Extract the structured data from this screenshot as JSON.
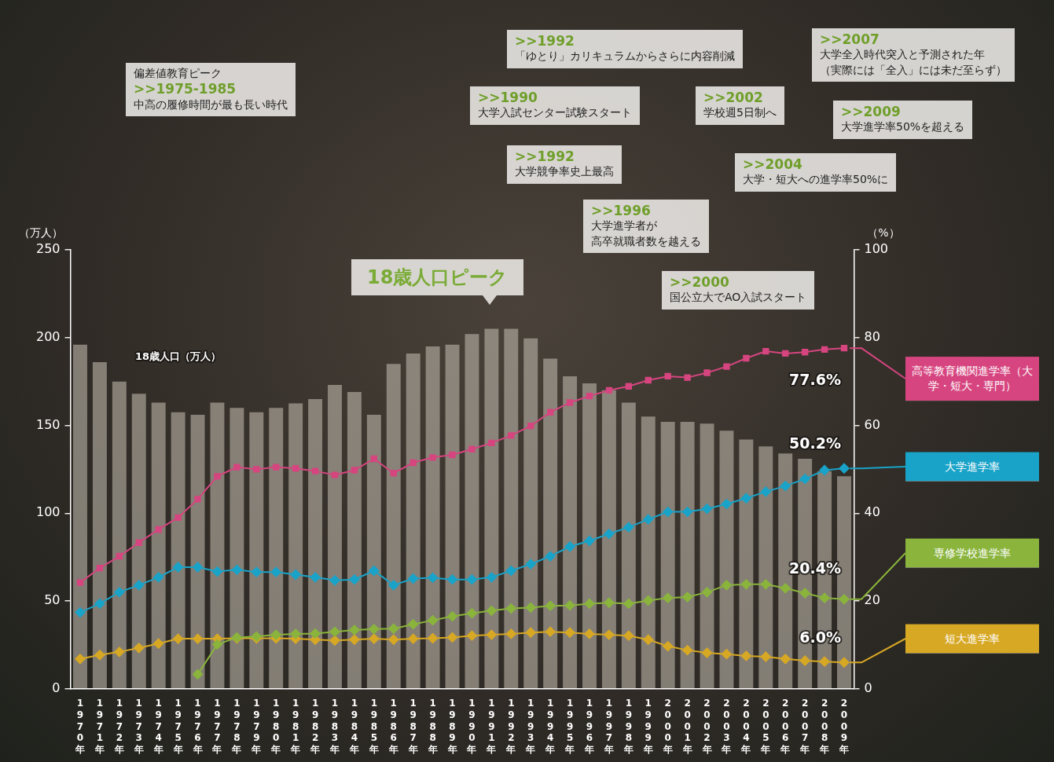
{
  "chart_data": {
    "type": "bar",
    "categories": [
      "1970年",
      "1971年",
      "1972年",
      "1973年",
      "1974年",
      "1975年",
      "1976年",
      "1977年",
      "1978年",
      "1979年",
      "1980年",
      "1981年",
      "1982年",
      "1983年",
      "1984年",
      "1985年",
      "1986年",
      "1987年",
      "1988年",
      "1989年",
      "1990年",
      "1991年",
      "1992年",
      "1993年",
      "1994年",
      "1995年",
      "1996年",
      "1997年",
      "1998年",
      "1999年",
      "2000年",
      "2001年",
      "2002年",
      "2003年",
      "2004年",
      "2005年",
      "2006年",
      "2007年",
      "2008年",
      "2009年"
    ],
    "series": [
      {
        "name": "18歳人口（万人）",
        "type": "bar",
        "color": "#b8b1a7",
        "values": [
          196,
          186,
          175,
          168,
          163,
          157.5,
          156,
          163,
          160,
          157.5,
          160,
          162.5,
          165,
          173,
          169,
          156,
          185,
          191,
          195,
          196,
          202,
          205,
          205,
          199.6,
          188,
          178,
          174,
          170,
          163,
          155,
          152,
          152,
          151,
          147,
          142,
          138,
          134,
          131,
          124,
          121
        ]
      },
      {
        "name": "高等教育機関進学率（大学・短大・専門）",
        "type": "line",
        "axis": "y2",
        "color": "#d6457f",
        "marker": "square",
        "values": [
          24.2,
          27.5,
          30.2,
          33.3,
          36.3,
          39.0,
          43.2,
          48.4,
          50.5,
          50.0,
          50.5,
          50.2,
          49.6,
          48.7,
          49.8,
          52.4,
          49.1,
          51.5,
          52.7,
          53.3,
          54.6,
          56.0,
          57.7,
          59.9,
          63.0,
          65.2,
          66.7,
          68.0,
          68.9,
          70.3,
          71.2,
          70.9,
          72.0,
          73.4,
          75.3,
          76.9,
          76.4,
          76.7,
          77.3,
          77.6
        ],
        "value_labels": [
          null,
          null,
          null,
          null,
          null,
          null,
          null,
          null,
          null,
          null,
          null,
          null,
          null,
          null,
          null,
          null,
          null,
          null,
          null,
          null,
          null,
          null,
          null,
          null,
          null,
          null,
          null,
          null,
          null,
          null,
          null,
          null,
          null,
          null,
          null,
          null,
          null,
          null,
          null,
          "77.6%"
        ]
      },
      {
        "name": "大学進学率",
        "type": "line",
        "axis": "y2",
        "color": "#1aa3c8",
        "marker": "diamond",
        "values": [
          17.4,
          19.4,
          22.0,
          23.6,
          25.4,
          27.7,
          27.7,
          26.7,
          27.1,
          26.6,
          26.6,
          26.0,
          25.4,
          24.7,
          24.9,
          26.9,
          23.6,
          25.1,
          25.3,
          24.9,
          24.9,
          25.4,
          26.9,
          28.4,
          30.2,
          32.4,
          33.7,
          35.3,
          36.8,
          38.6,
          40.3,
          40.3,
          41.0,
          42.1,
          43.4,
          44.9,
          46.2,
          47.8,
          49.8,
          50.2
        ],
        "value_labels": [
          null,
          null,
          null,
          null,
          null,
          null,
          null,
          null,
          null,
          null,
          null,
          null,
          null,
          null,
          null,
          null,
          null,
          null,
          null,
          null,
          null,
          null,
          null,
          null,
          null,
          null,
          null,
          null,
          null,
          null,
          null,
          null,
          null,
          null,
          null,
          null,
          null,
          null,
          null,
          "50.2%"
        ]
      },
      {
        "name": "専修学校進学率",
        "type": "line",
        "axis": "y2",
        "color": "#8ab43c",
        "marker": "diamond",
        "values": [
          null,
          null,
          null,
          null,
          null,
          null,
          3.3,
          10.1,
          11.7,
          11.9,
          12.3,
          12.5,
          12.6,
          13.0,
          13.4,
          13.6,
          13.7,
          14.7,
          15.6,
          16.5,
          17.2,
          17.8,
          18.3,
          18.5,
          18.9,
          19.0,
          19.4,
          19.6,
          19.4,
          20.1,
          20.7,
          20.9,
          22.0,
          23.6,
          23.8,
          23.8,
          22.9,
          21.8,
          20.7,
          20.4
        ],
        "value_labels": [
          null,
          null,
          null,
          null,
          null,
          null,
          null,
          null,
          null,
          null,
          null,
          null,
          null,
          null,
          null,
          null,
          null,
          null,
          null,
          null,
          null,
          null,
          null,
          null,
          null,
          null,
          null,
          null,
          null,
          null,
          null,
          null,
          null,
          null,
          null,
          null,
          null,
          null,
          null,
          "20.4%"
        ]
      },
      {
        "name": "短大進学率",
        "type": "line",
        "axis": "y2",
        "color": "#d7a824",
        "marker": "diamond",
        "values": [
          6.8,
          7.7,
          8.4,
          9.3,
          10.3,
          11.4,
          11.4,
          11.4,
          11.5,
          11.5,
          11.5,
          11.4,
          11.2,
          11.0,
          11.2,
          11.4,
          11.2,
          11.4,
          11.5,
          11.7,
          12.1,
          12.3,
          12.5,
          12.8,
          13.0,
          12.8,
          12.5,
          12.3,
          12.1,
          11.2,
          9.7,
          8.8,
          8.2,
          7.9,
          7.5,
          7.3,
          6.8,
          6.4,
          6.2,
          6.0
        ],
        "value_labels": [
          null,
          null,
          null,
          null,
          null,
          null,
          null,
          null,
          null,
          null,
          null,
          null,
          null,
          null,
          null,
          null,
          null,
          null,
          null,
          null,
          null,
          null,
          null,
          null,
          null,
          null,
          null,
          null,
          null,
          null,
          null,
          null,
          null,
          null,
          null,
          null,
          null,
          null,
          null,
          "6.0%"
        ]
      }
    ],
    "y_label": "（万人）",
    "y2_label": "（%）",
    "ylim": [
      0,
      250
    ],
    "yticks": [
      0,
      50,
      100,
      150,
      200,
      250
    ],
    "y2lim": [
      0,
      100
    ],
    "y2ticks": [
      0,
      20,
      40,
      60,
      80,
      100
    ],
    "grid": false,
    "legend": "right",
    "annotations": [
      {
        "heading": "偏差値教育ピーク",
        "label": ">>1975-1985",
        "text": [
          "中高の履修時間が最も長い時代"
        ]
      },
      {
        "label": ">>1992",
        "text": [
          "「ゆとり」カリキュラムからさらに内容削減"
        ]
      },
      {
        "label": ">>1990",
        "text": [
          "大学入試センター試験スタート"
        ]
      },
      {
        "label": ">>1992",
        "text": [
          "大学競争率史上最高"
        ]
      },
      {
        "label": ">>1996",
        "text": [
          "大学進学者が",
          "高卒就職者数を越える"
        ]
      },
      {
        "label": ">>2000",
        "text": [
          "国公立大でAO入試スタート"
        ]
      },
      {
        "label": ">>2002",
        "text": [
          "学校週5日制へ"
        ]
      },
      {
        "label": ">>2004",
        "text": [
          "大学・短大への進学率50%に"
        ]
      },
      {
        "label": ">>2007",
        "text": [
          "大学全入時代突入と予測された年",
          "（実際には「全入」には未だ至らず）"
        ]
      },
      {
        "label": ">>2009",
        "text": [
          "大学進学率50%を超える"
        ]
      },
      {
        "text": [
          "18歳人口ピーク"
        ]
      }
    ]
  }
}
